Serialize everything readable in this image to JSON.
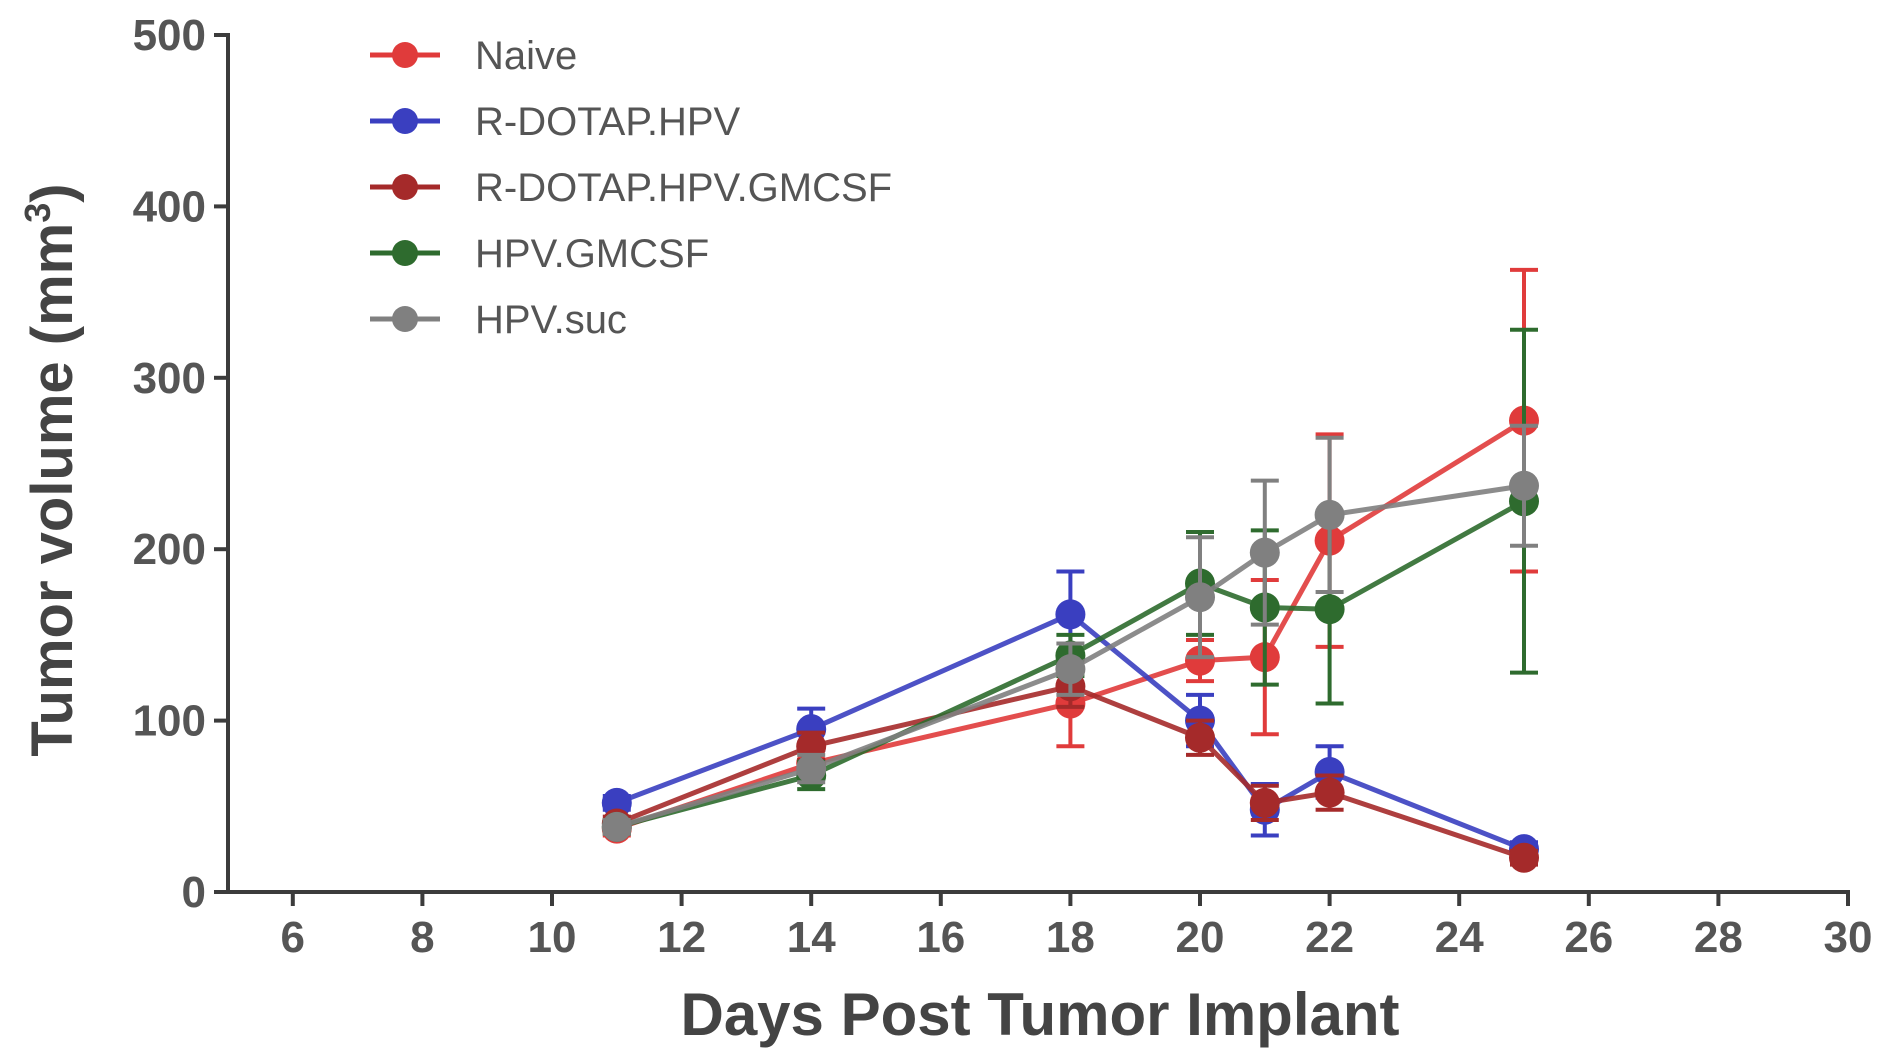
{
  "chart_data": {
    "type": "line",
    "xlabel": "Days Post Tumor Implant",
    "ylabel": "Tumor volume (mm",
    "ylabel_sup": "3",
    "ylabel_end": ")",
    "xlim": [
      5,
      30
    ],
    "ylim": [
      0,
      500
    ],
    "xticks": [
      6,
      8,
      10,
      12,
      14,
      16,
      18,
      20,
      22,
      24,
      26,
      28,
      30
    ],
    "yticks": [
      0,
      100,
      200,
      300,
      400,
      500
    ],
    "legend_position": "top-left",
    "series": [
      {
        "name": "Naive",
        "color": "#e03b3b",
        "x": [
          11,
          14,
          18,
          20,
          21,
          22,
          25
        ],
        "y": [
          37,
          75,
          110,
          135,
          137,
          205,
          275
        ],
        "err": [
          4,
          8,
          25,
          12,
          45,
          62,
          88
        ]
      },
      {
        "name": "R-DOTAP.HPV",
        "color": "#3a3fc0",
        "x": [
          11,
          14,
          18,
          20,
          21,
          22,
          25
        ],
        "y": [
          52,
          95,
          162,
          100,
          48,
          70,
          25
        ],
        "err": [
          4,
          12,
          25,
          15,
          15,
          15,
          4
        ]
      },
      {
        "name": "R-DOTAP.HPV.GMCSF",
        "color": "#a52a2a",
        "x": [
          11,
          14,
          18,
          20,
          21,
          22,
          25
        ],
        "y": [
          40,
          85,
          120,
          90,
          52,
          58,
          20
        ],
        "err": [
          4,
          8,
          12,
          10,
          10,
          10,
          4
        ]
      },
      {
        "name": "HPV.GMCSF",
        "color": "#2e6b2e",
        "x": [
          11,
          14,
          18,
          20,
          21,
          22,
          25
        ],
        "y": [
          38,
          68,
          138,
          180,
          166,
          165,
          228
        ],
        "err": [
          4,
          8,
          12,
          30,
          45,
          55,
          100
        ]
      },
      {
        "name": "HPV.suc",
        "color": "#808080",
        "x": [
          11,
          14,
          18,
          20,
          21,
          22,
          25
        ],
        "y": [
          38,
          72,
          130,
          172,
          198,
          220,
          237
        ],
        "err": [
          4,
          8,
          15,
          35,
          42,
          45,
          35
        ]
      }
    ]
  }
}
